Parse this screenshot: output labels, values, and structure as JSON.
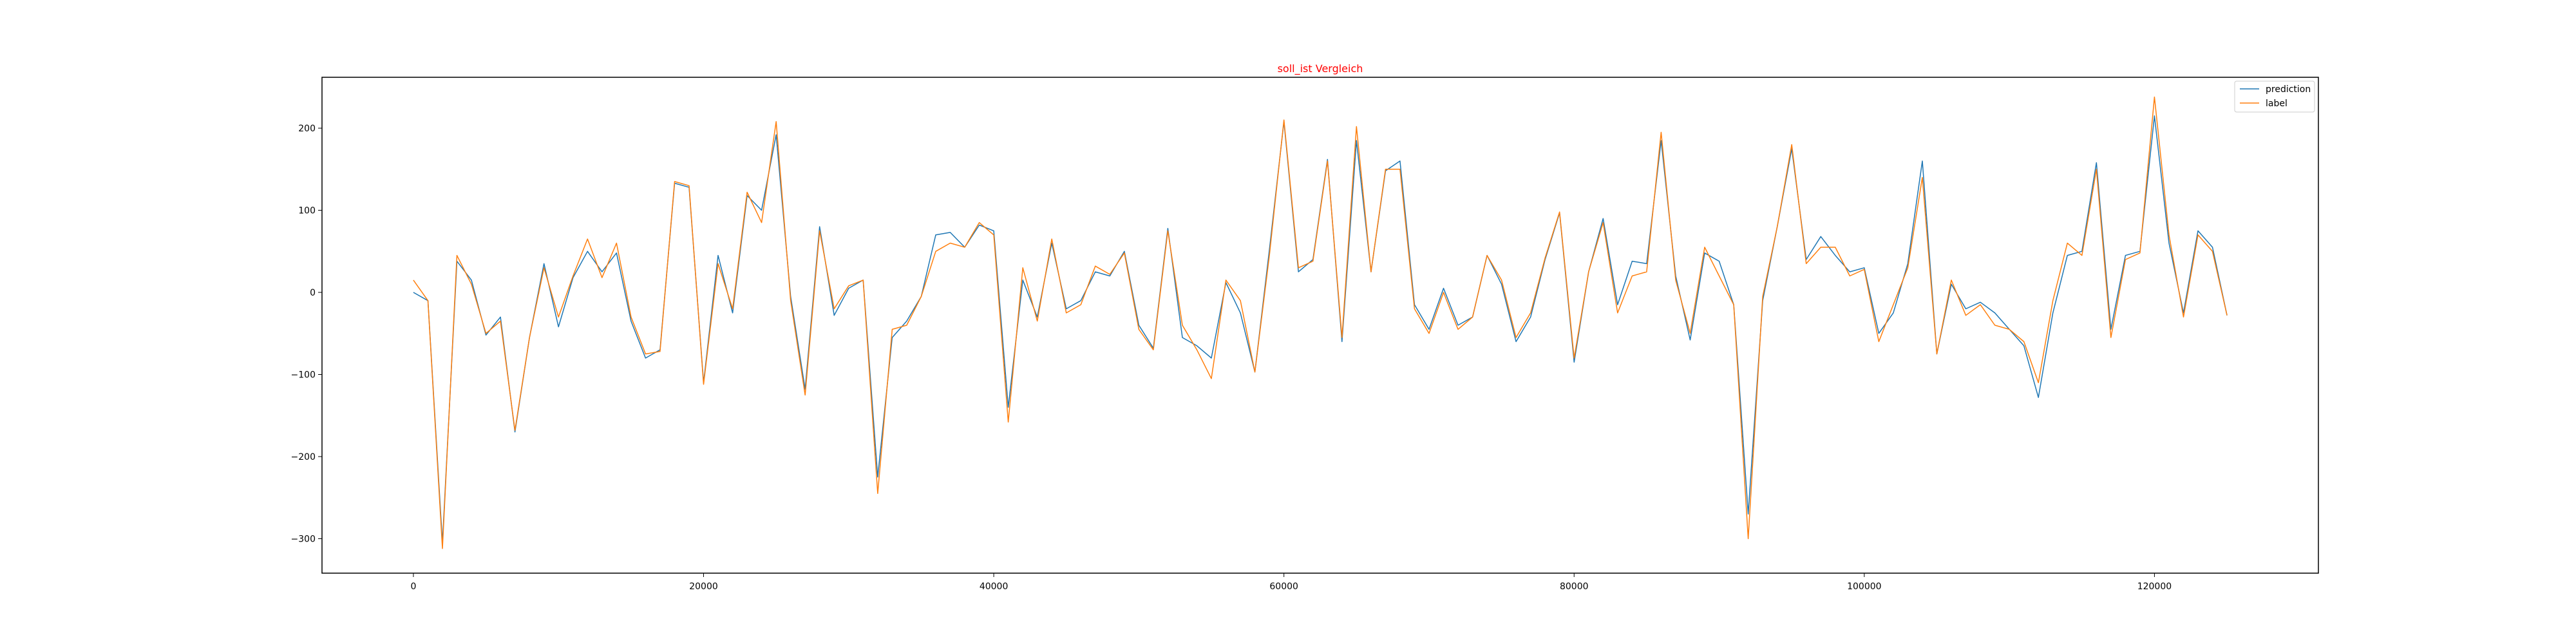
{
  "colors": {
    "prediction": "#1f77b4",
    "label": "#ff7f0e",
    "title": "#ff0000"
  },
  "chart_data": {
    "type": "line",
    "title": "soll_ist Vergleich",
    "xlabel": "",
    "ylabel": "",
    "xlim": [
      -6300,
      131300
    ],
    "ylim": [
      -342,
      262
    ],
    "xticks": [
      0,
      20000,
      40000,
      60000,
      80000,
      100000,
      120000
    ],
    "xtick_labels": [
      "0",
      "20000",
      "40000",
      "60000",
      "80000",
      "100000",
      "120000"
    ],
    "yticks": [
      -300,
      -200,
      -100,
      0,
      100,
      200
    ],
    "ytick_labels": [
      "−300",
      "−200",
      "−100",
      "0",
      "100",
      "200"
    ],
    "grid": false,
    "legend": "top-right",
    "x": [
      0,
      1000,
      2000,
      3000,
      4000,
      5000,
      6000,
      7000,
      8000,
      9000,
      10000,
      11000,
      12000,
      13000,
      14000,
      15000,
      16000,
      17000,
      18000,
      19000,
      20000,
      21000,
      22000,
      23000,
      24000,
      25000,
      26000,
      27000,
      28000,
      29000,
      30000,
      31000,
      32000,
      33000,
      34000,
      35000,
      36000,
      37000,
      38000,
      39000,
      40000,
      41000,
      42000,
      43000,
      44000,
      45000,
      46000,
      47000,
      48000,
      49000,
      50000,
      51000,
      52000,
      53000,
      54000,
      55000,
      56000,
      57000,
      58000,
      59000,
      60000,
      61000,
      62000,
      63000,
      64000,
      65000,
      66000,
      67000,
      68000,
      69000,
      70000,
      71000,
      72000,
      73000,
      74000,
      75000,
      76000,
      77000,
      78000,
      79000,
      80000,
      81000,
      82000,
      83000,
      84000,
      85000,
      86000,
      87000,
      88000,
      89000,
      90000,
      91000,
      92000,
      93000,
      94000,
      95000,
      96000,
      97000,
      98000,
      99000,
      100000,
      101000,
      102000,
      103000,
      104000,
      105000,
      106000,
      107000,
      108000,
      109000,
      110000,
      111000,
      112000,
      113000,
      114000,
      115000,
      116000,
      117000,
      118000,
      119000,
      120000,
      121000,
      122000,
      123000,
      124000,
      125000
    ],
    "series": [
      {
        "name": "prediction",
        "values": [
          0,
          -10,
          -305,
          38,
          15,
          -52,
          -30,
          -170,
          -55,
          35,
          -42,
          18,
          50,
          25,
          48,
          -35,
          -80,
          -70,
          133,
          128,
          -110,
          45,
          -25,
          118,
          100,
          192,
          -5,
          -118,
          80,
          -28,
          5,
          15,
          -225,
          -55,
          -35,
          -5,
          70,
          73,
          55,
          82,
          75,
          -140,
          15,
          -30,
          60,
          -20,
          -10,
          25,
          20,
          50,
          -40,
          -68,
          78,
          -55,
          -65,
          -80,
          12,
          -25,
          -97,
          52,
          208,
          25,
          40,
          162,
          -60,
          185,
          25,
          148,
          160,
          -15,
          -45,
          5,
          -40,
          -30,
          45,
          10,
          -60,
          -30,
          40,
          97,
          -85,
          25,
          90,
          -15,
          38,
          35,
          185,
          20,
          -58,
          48,
          38,
          -15,
          -270,
          -10,
          80,
          175,
          40,
          68,
          45,
          25,
          30,
          -50,
          -25,
          35,
          160,
          -75,
          10,
          -20,
          -12,
          -25,
          -45,
          -65,
          -128,
          -25,
          45,
          50,
          158,
          -45,
          45,
          50,
          215,
          60,
          -25,
          75,
          55,
          -28
        ]
      },
      {
        "name": "label",
        "values": [
          15,
          -10,
          -312,
          45,
          10,
          -50,
          -35,
          -168,
          -55,
          30,
          -30,
          20,
          65,
          18,
          60,
          -30,
          -75,
          -72,
          135,
          130,
          -112,
          35,
          -20,
          122,
          85,
          208,
          -10,
          -125,
          75,
          -20,
          8,
          15,
          -245,
          -45,
          -40,
          -5,
          50,
          60,
          55,
          85,
          70,
          -158,
          30,
          -35,
          65,
          -25,
          -15,
          32,
          22,
          48,
          -45,
          -70,
          75,
          -40,
          -70,
          -105,
          15,
          -10,
          -97,
          45,
          210,
          30,
          38,
          160,
          -55,
          202,
          25,
          150,
          150,
          -20,
          -50,
          0,
          -45,
          -30,
          45,
          15,
          -55,
          -25,
          42,
          98,
          -80,
          25,
          85,
          -25,
          20,
          25,
          195,
          15,
          -50,
          55,
          20,
          -15,
          -300,
          -5,
          80,
          180,
          35,
          55,
          55,
          20,
          28,
          -60,
          -15,
          30,
          140,
          -75,
          15,
          -28,
          -15,
          -40,
          -45,
          -60,
          -110,
          -10,
          60,
          45,
          150,
          -55,
          40,
          48,
          238,
          70,
          -30,
          70,
          50,
          -28
        ]
      }
    ]
  }
}
